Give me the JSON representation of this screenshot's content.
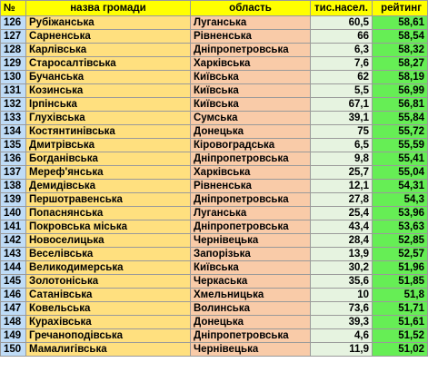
{
  "headers": {
    "num": "№",
    "name": "назва громади",
    "region": "область",
    "population": "тис.насел.",
    "rating": "рейтинг"
  },
  "colors": {
    "header": "#ffff00",
    "num_column": "#bfdcf7",
    "name_column": "#ffe07f",
    "region_column": "#f9cba8",
    "population_column": "#e6f3e0",
    "rating_column": "#66ee55"
  },
  "rows": [
    {
      "num": "126",
      "name": "Рубіжанська",
      "region": "Луганська",
      "population": "60,5",
      "rating": "58,61"
    },
    {
      "num": "127",
      "name": "Сарненська",
      "region": "Рівненська",
      "population": "66",
      "rating": "58,54"
    },
    {
      "num": "128",
      "name": "Карлівська",
      "region": "Дніпропетровська",
      "population": "6,3",
      "rating": "58,32"
    },
    {
      "num": "129",
      "name": "Старосалтівська",
      "region": "Харківська",
      "population": "7,6",
      "rating": "58,27"
    },
    {
      "num": "130",
      "name": "Бучанська",
      "region": "Київська",
      "population": "62",
      "rating": "58,19"
    },
    {
      "num": "131",
      "name": "Козинська",
      "region": "Київська",
      "population": "5,5",
      "rating": "56,99"
    },
    {
      "num": "132",
      "name": "Ірпінська",
      "region": "Київська",
      "population": "67,1",
      "rating": "56,81"
    },
    {
      "num": "133",
      "name": "Глухівська",
      "region": "Сумська",
      "population": "39,1",
      "rating": "55,84"
    },
    {
      "num": "134",
      "name": "Костянтинівська",
      "region": "Донецька",
      "population": "75",
      "rating": "55,72"
    },
    {
      "num": "135",
      "name": "Дмитрівська",
      "region": "Кіровоградська",
      "population": "6,5",
      "rating": "55,59"
    },
    {
      "num": "136",
      "name": "Богданівська",
      "region": "Дніпропетровська",
      "population": "9,8",
      "rating": "55,41"
    },
    {
      "num": "137",
      "name": "Мереф'янська",
      "region": "Харківська",
      "population": "25,7",
      "rating": "55,04"
    },
    {
      "num": "138",
      "name": "Демидівська",
      "region": "Рівненська",
      "population": "12,1",
      "rating": "54,31"
    },
    {
      "num": "139",
      "name": "Першотравенська",
      "region": "Дніпропетровська",
      "population": "27,8",
      "rating": "54,3"
    },
    {
      "num": "140",
      "name": "Попаснянська",
      "region": "Луганська",
      "population": "25,4",
      "rating": "53,96"
    },
    {
      "num": "141",
      "name": "Покровська міська",
      "region": "Дніпропетровська",
      "population": "43,4",
      "rating": "53,63"
    },
    {
      "num": "142",
      "name": "Новоселицька",
      "region": "Чернівецька",
      "population": "28,4",
      "rating": "52,85"
    },
    {
      "num": "143",
      "name": "Веселівська",
      "region": "Запорізька",
      "population": "13,9",
      "rating": "52,57"
    },
    {
      "num": "144",
      "name": "Великодимерська",
      "region": "Київська",
      "population": "30,2",
      "rating": "51,96"
    },
    {
      "num": "145",
      "name": "Золотоніська",
      "region": "Черкаська",
      "population": "35,6",
      "rating": "51,85"
    },
    {
      "num": "146",
      "name": "Сатанівська",
      "region": "Хмельницька",
      "population": "10",
      "rating": "51,8"
    },
    {
      "num": "147",
      "name": "Ковельська",
      "region": "Волинська",
      "population": "73,6",
      "rating": "51,71"
    },
    {
      "num": "148",
      "name": "Курахівська",
      "region": "Донецька",
      "population": "39,3",
      "rating": "51,61"
    },
    {
      "num": "149",
      "name": "Гречаноподівська",
      "region": "Дніпропетровська",
      "population": "4,6",
      "rating": "51,52"
    },
    {
      "num": "150",
      "name": "Мамалигівська",
      "region": "Чернівецька",
      "population": "11,9",
      "rating": "51,02"
    }
  ]
}
